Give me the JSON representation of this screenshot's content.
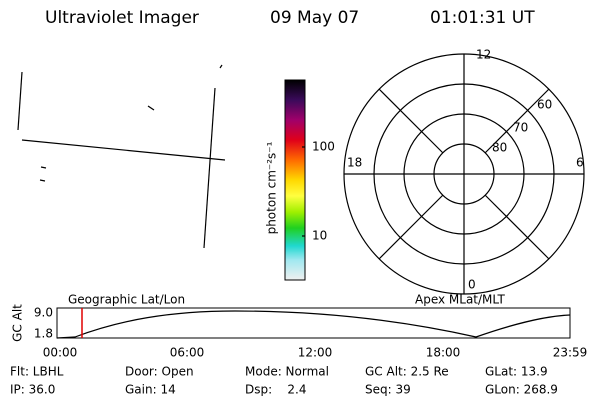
{
  "header": {
    "title": "Ultraviolet Imager",
    "date": "09 May 07",
    "time": "01:01:31 UT"
  },
  "colorbar": {
    "label": "photon cm⁻²s⁻¹",
    "ticks": [
      "100",
      "10"
    ]
  },
  "polar": {
    "mlt_labels": [
      "12",
      "18",
      "6",
      "0"
    ],
    "lat_labels": [
      "60",
      "70",
      "80"
    ]
  },
  "timeline": {
    "left_title": "Geographic Lat/Lon",
    "right_title": "Apex MLat/MLT",
    "y_label": "GC Alt",
    "y_ticks": [
      "9.0",
      "1.8"
    ],
    "x_ticks": [
      "00:00",
      "06:00",
      "12:00",
      "18:00",
      "23:59"
    ]
  },
  "footer": {
    "rows": [
      [
        "Flt: LBHL",
        "Door: Open",
        "Mode: Normal",
        "GC Alt: 2.5 Re",
        "GLat: 13.9"
      ],
      [
        "IP: 36.0",
        "Gain: 14",
        "Dsp:    2.4",
        "Seq: 39",
        "GLon: 268.9"
      ]
    ]
  }
}
